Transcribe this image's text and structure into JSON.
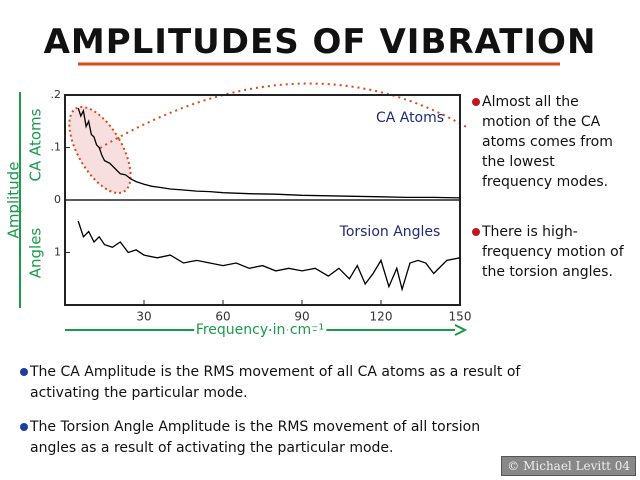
{
  "title": "AMPLITUDES OF VIBRATION",
  "y_label": "Amplitude",
  "x_label": "Frequency in cm⁻¹",
  "chart_data": [
    {
      "type": "line",
      "y_label": "CA Atoms",
      "annotation": "CA Atoms",
      "color": "#000000",
      "x": [
        5,
        6,
        7,
        8,
        9,
        10,
        11,
        12,
        13,
        14,
        15,
        17,
        19,
        21,
        23,
        25,
        27,
        30,
        33,
        36,
        40,
        45,
        50,
        55,
        60,
        70,
        80,
        90,
        100,
        110,
        120,
        130,
        140,
        150
      ],
      "values": [
        0.175,
        0.16,
        0.17,
        0.14,
        0.15,
        0.125,
        0.12,
        0.105,
        0.1,
        0.085,
        0.075,
        0.07,
        0.06,
        0.05,
        0.048,
        0.04,
        0.035,
        0.03,
        0.026,
        0.024,
        0.021,
        0.019,
        0.017,
        0.016,
        0.014,
        0.012,
        0.011,
        0.009,
        0.008,
        0.007,
        0.006,
        0.005,
        0.005,
        0.004
      ],
      "xlim": [
        0,
        150
      ],
      "ylim": [
        0,
        0.2
      ],
      "yticks": [
        0,
        {
          "value": 0.1,
          "label": ".1"
        },
        {
          "value": 0.2,
          "label": ".2"
        }
      ]
    },
    {
      "type": "line",
      "y_label": "Angles",
      "annotation": "Torsion Angles",
      "color": "#000000",
      "x": [
        5,
        7,
        9,
        11,
        13,
        15,
        18,
        21,
        24,
        27,
        30,
        35,
        40,
        45,
        50,
        55,
        60,
        65,
        70,
        75,
        80,
        85,
        90,
        95,
        100,
        104,
        108,
        111,
        114,
        117,
        120,
        123,
        126,
        128,
        131,
        134,
        137,
        140,
        145,
        150
      ],
      "values": [
        1.6,
        1.3,
        1.4,
        1.2,
        1.3,
        1.15,
        1.1,
        1.2,
        1.0,
        1.05,
        0.95,
        0.9,
        0.95,
        0.8,
        0.85,
        0.8,
        0.75,
        0.8,
        0.7,
        0.75,
        0.65,
        0.7,
        0.65,
        0.7,
        0.55,
        0.7,
        0.5,
        0.75,
        0.4,
        0.6,
        0.85,
        0.35,
        0.7,
        0.3,
        0.8,
        0.85,
        0.8,
        0.6,
        0.85,
        0.9
      ],
      "xlim": [
        0,
        150
      ],
      "ylim": [
        0,
        2
      ],
      "yticks": [
        1
      ],
      "xticks": [
        30,
        60,
        90,
        120,
        150
      ]
    }
  ],
  "notes": [
    "Almost all the motion of the CA atoms comes from the lowest frequency modes.",
    "There is high-frequency motion of the torsion angles."
  ],
  "bullets": [
    "The CA Amplitude is the RMS movement of all CA atoms as a result of activating the particular mode.",
    "The Torsion Angle Amplitude is the RMS movement of all torsion angles as a result of activating the particular mode."
  ],
  "credit": "© Michael Levitt 04"
}
